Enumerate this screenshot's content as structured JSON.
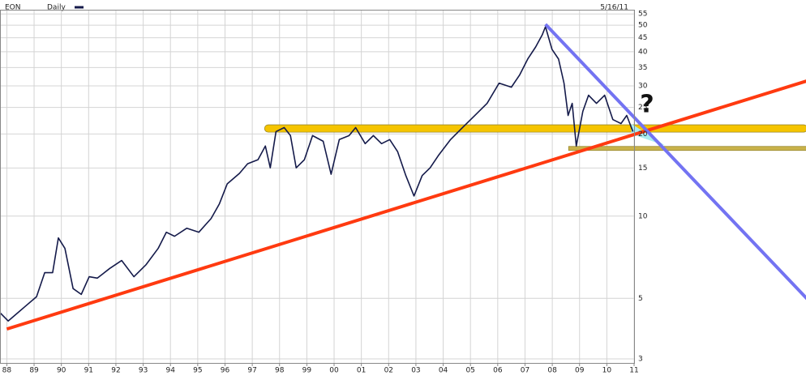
{
  "chart_data": {
    "type": "line",
    "title": "EON",
    "date": "5/16/11",
    "annotation": "?",
    "log_y": true,
    "grid": true,
    "xlim": [
      1988.25,
      2011.5
    ],
    "ylim": [
      2.9,
      57
    ],
    "yticks": [
      3,
      5,
      10,
      15,
      20,
      25,
      30,
      35,
      40,
      45,
      50,
      55
    ],
    "xticks": [
      {
        "value": 1988.5,
        "label": "88"
      },
      {
        "value": 1989.5,
        "label": "89"
      },
      {
        "value": 1990.5,
        "label": "90"
      },
      {
        "value": 1991.5,
        "label": "91"
      },
      {
        "value": 1992.5,
        "label": "92"
      },
      {
        "value": 1993.5,
        "label": "93"
      },
      {
        "value": 1994.5,
        "label": "94"
      },
      {
        "value": 1995.5,
        "label": "95"
      },
      {
        "value": 1996.5,
        "label": "96"
      },
      {
        "value": 1997.5,
        "label": "97"
      },
      {
        "value": 1998.5,
        "label": "98"
      },
      {
        "value": 1999.5,
        "label": "99"
      },
      {
        "value": 2000.5,
        "label": "00"
      },
      {
        "value": 2001.5,
        "label": "01"
      },
      {
        "value": 2002.5,
        "label": "02"
      },
      {
        "value": 2003.5,
        "label": "03"
      },
      {
        "value": 2004.5,
        "label": "04"
      },
      {
        "value": 2005.5,
        "label": "05"
      },
      {
        "value": 2006.5,
        "label": "06"
      },
      {
        "value": 2007.5,
        "label": "07"
      },
      {
        "value": 2008.5,
        "label": "08"
      },
      {
        "value": 2009.5,
        "label": "09"
      },
      {
        "value": 2010.5,
        "label": "10"
      },
      {
        "value": 2011.5,
        "label": "11"
      }
    ],
    "series": [
      {
        "name": "Daily",
        "color": "#141a4a",
        "x": [
          1988.25,
          1988.55,
          1989.14,
          1989.59,
          1989.89,
          1990.18,
          1990.39,
          1990.63,
          1990.93,
          1991.23,
          1991.52,
          1991.82,
          1992.27,
          1992.71,
          1993.16,
          1993.61,
          1994.05,
          1994.35,
          1994.65,
          1995.1,
          1995.54,
          1995.99,
          1996.29,
          1996.58,
          1997.03,
          1997.33,
          1997.71,
          1997.98,
          1998.16,
          1998.37,
          1998.67,
          1998.9,
          1999.11,
          1999.41,
          1999.71,
          2000.1,
          2000.39,
          2000.69,
          2001.05,
          2001.29,
          2001.64,
          2001.94,
          2002.24,
          2002.54,
          2002.83,
          2003.13,
          2003.43,
          2003.73,
          2004.02,
          2004.32,
          2004.77,
          2005.21,
          2005.66,
          2006.11,
          2006.55,
          2007.0,
          2007.3,
          2007.6,
          2007.89,
          2008.13,
          2008.25,
          2008.49,
          2008.73,
          2008.93,
          2009.08,
          2009.23,
          2009.38,
          2009.62,
          2009.83,
          2010.12,
          2010.42,
          2010.72,
          2011.02,
          2011.23,
          2011.4,
          2011.46
        ],
        "values": [
          4.43,
          4.13,
          4.64,
          5.07,
          6.21,
          6.21,
          8.32,
          7.62,
          5.43,
          5.17,
          6.0,
          5.93,
          6.43,
          6.88,
          6.0,
          6.65,
          7.62,
          8.73,
          8.44,
          9.03,
          8.73,
          9.8,
          11.07,
          13.12,
          14.34,
          15.55,
          16.09,
          18.06,
          15.03,
          20.4,
          21.1,
          19.72,
          15.03,
          16.09,
          19.72,
          18.8,
          14.24,
          19.07,
          19.72,
          21.1,
          18.43,
          19.72,
          18.43,
          19.07,
          17.22,
          14.08,
          11.85,
          14.08,
          15.03,
          16.65,
          19.07,
          21.1,
          23.37,
          25.88,
          30.69,
          29.66,
          32.84,
          37.61,
          41.63,
          46.07,
          49.38,
          40.8,
          37.61,
          30.69,
          23.37,
          25.88,
          18.06,
          24.19,
          27.72,
          25.88,
          27.72,
          22.58,
          21.83,
          23.37,
          21.1,
          20.4
        ]
      }
    ],
    "bands": [
      {
        "color": "#f5c400",
        "x": [
          1997.95,
          2017.85
        ],
        "values": [
          20.3,
          21.6
        ]
      },
      {
        "color": "#c9b24a",
        "x": [
          2009.1,
          2017.85
        ],
        "values": [
          17.4,
          18.0
        ]
      }
    ],
    "shade": {
      "color": "#a9ecf2",
      "x": [
        2011.4,
        2011.4,
        2012.65
      ],
      "values": [
        21.8,
        20.0,
        18.1
      ]
    },
    "trendlines": [
      {
        "color": "#ff3a10",
        "x": [
          1988.5,
          2017.85
        ],
        "values": [
          3.86,
          31.3
        ]
      },
      {
        "color": "#7373f2",
        "x": [
          2008.25,
          2017.85
        ],
        "values": [
          50.4,
          4.97
        ]
      }
    ]
  }
}
